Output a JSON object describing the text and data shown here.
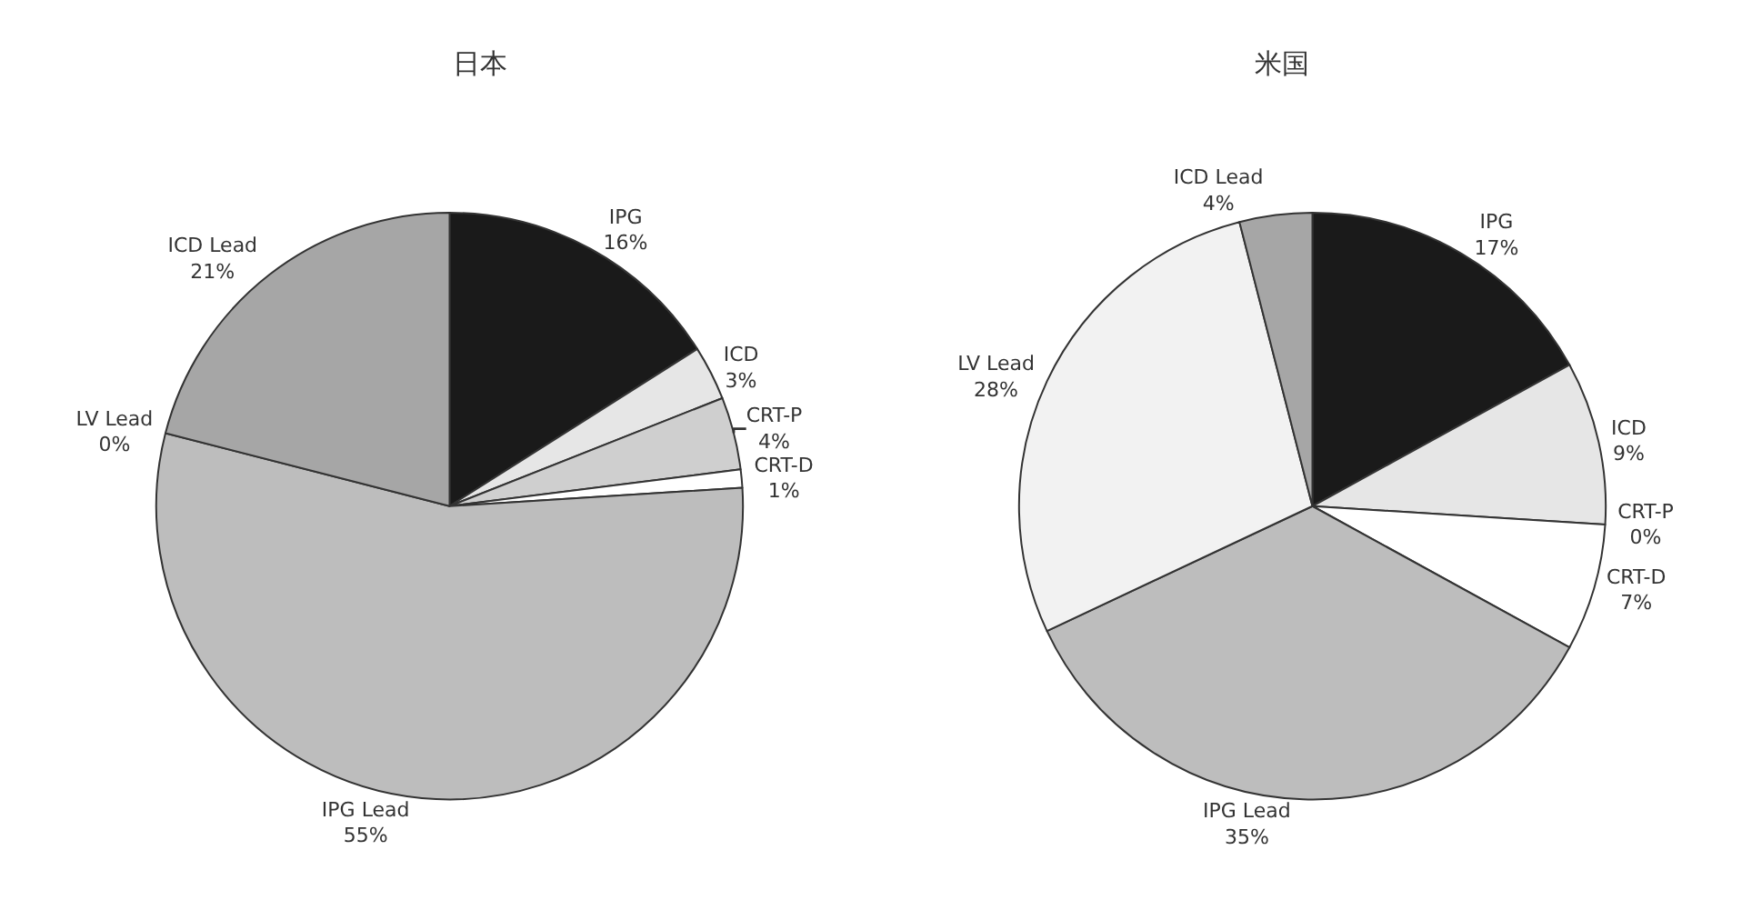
{
  "chart_data": [
    {
      "type": "pie",
      "title": "日本",
      "categories": [
        "IPG",
        "ICD",
        "CRT-P",
        "CRT-D",
        "IPG Lead",
        "LV Lead",
        "ICD Lead"
      ],
      "values": [
        16,
        3,
        4,
        1,
        55,
        0,
        21
      ],
      "value_labels": [
        "16%",
        "3%",
        "4%",
        "1%",
        "55%",
        "0%",
        "21%"
      ],
      "colors": [
        "#1a1a1a",
        "#e6e6e6",
        "#cfcfcf",
        "#ffffff",
        "#bdbdbd",
        "#f2f2f2",
        "#a6a6a6"
      ]
    },
    {
      "type": "pie",
      "title": "米国",
      "categories": [
        "IPG",
        "ICD",
        "CRT-P",
        "CRT-D",
        "IPG Lead",
        "LV Lead",
        "ICD Lead"
      ],
      "values": [
        17,
        9,
        0,
        7,
        35,
        28,
        4
      ],
      "value_labels": [
        "17%",
        "9%",
        "0%",
        "7%",
        "35%",
        "28%",
        "4%"
      ],
      "colors": [
        "#1a1a1a",
        "#e6e6e6",
        "#cfcfcf",
        "#ffffff",
        "#bdbdbd",
        "#f2f2f2",
        "#a6a6a6"
      ]
    }
  ]
}
